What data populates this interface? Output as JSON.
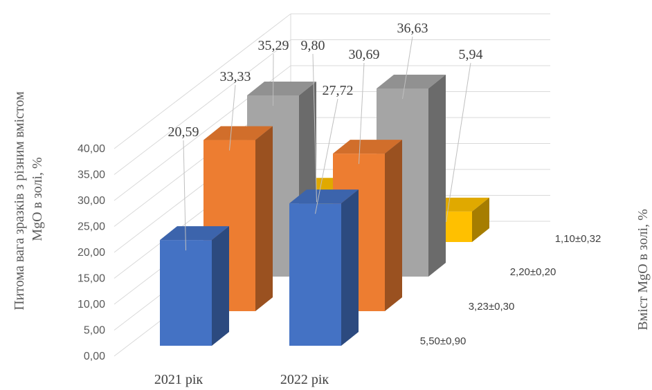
{
  "chart_data": {
    "type": "bar",
    "categories": [
      "2021 рік",
      "2022 рік"
    ],
    "series": [
      {
        "name": "5,50±0,90",
        "values": [
          20.59,
          27.72
        ],
        "color": "#4472C4"
      },
      {
        "name": "3,23±0,30",
        "values": [
          33.33,
          30.69
        ],
        "color": "#ED7D31"
      },
      {
        "name": "2,20±0,20",
        "values": [
          35.29,
          36.63
        ],
        "color": "#A5A5A5"
      },
      {
        "name": "1,10±0,32",
        "values": [
          9.8,
          5.94
        ],
        "color": "#FFC000"
      }
    ],
    "data_labels": [
      [
        "20,59",
        "27,72"
      ],
      [
        "33,33",
        "30,69"
      ],
      [
        "35,29",
        "36,63"
      ],
      [
        "9,80",
        "5,94"
      ]
    ],
    "ylabel": "Питома вага  зразків з різним вмістом MgO в золі, %",
    "zlabel": "Вміст MgO в золі, %",
    "ylim": [
      0,
      40
    ],
    "yticks": [
      "0,00",
      "5,00",
      "10,00",
      "15,00",
      "20,00",
      "25,00",
      "30,00",
      "35,00",
      "40,00"
    ],
    "grid": true,
    "legend": "none"
  }
}
